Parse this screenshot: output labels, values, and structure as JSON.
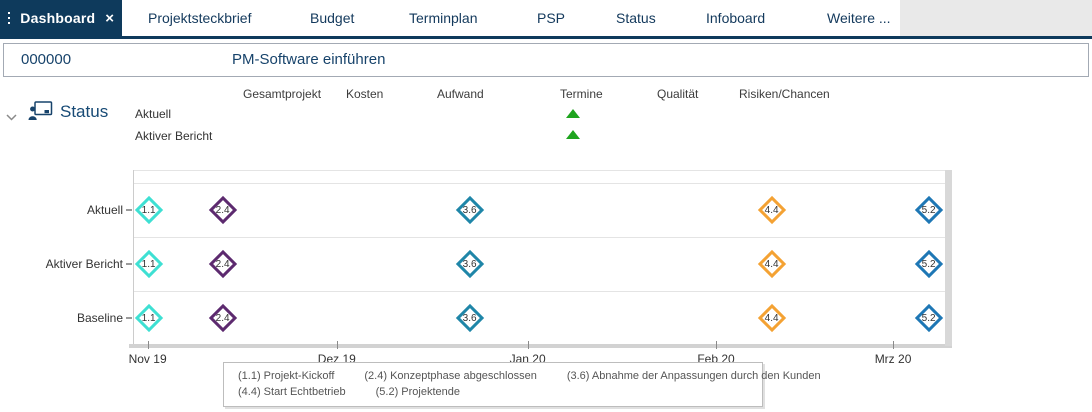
{
  "tabs": {
    "active": {
      "label": "Dashboard",
      "close_icon": "×"
    },
    "items": [
      {
        "label": "Projektsteckbrief"
      },
      {
        "label": "Budget"
      },
      {
        "label": "Terminplan"
      },
      {
        "label": "PSP"
      },
      {
        "label": "Status"
      },
      {
        "label": "Infoboard"
      },
      {
        "label": "Weitere ..."
      }
    ]
  },
  "header": {
    "project_number": "000000",
    "project_title": "PM-Software einführen"
  },
  "status_section": {
    "title": "Status",
    "columns": [
      "Gesamtprojekt",
      "Kosten",
      "Aufwand",
      "Termine",
      "Qualität",
      "Risiken/Chancen"
    ],
    "rows": [
      {
        "label": "Aktuell",
        "indicators": {
          "Termine": "trend-up"
        }
      },
      {
        "label": "Aktiver Bericht",
        "indicators": {
          "Termine": "trend-up"
        }
      }
    ],
    "trend_color": "#1ea41e"
  },
  "chart_data": {
    "type": "scatter",
    "subtype": "milestone-timeline",
    "rows": [
      "Aktuell",
      "Aktiver Bericht",
      "Baseline"
    ],
    "x_axis": {
      "ticks": [
        "Nov 19",
        "Dez 19",
        "Jan 20",
        "Feb 20",
        "Mrz 20"
      ],
      "tick_x_pct": [
        1.8,
        25.1,
        48.6,
        71.8,
        93.6
      ],
      "range": [
        "Nov 2019",
        "Mrz 2020"
      ]
    },
    "milestones": [
      {
        "id": "1.1",
        "label": "Projekt-Kickoff",
        "date_est": "01.11.2019",
        "x_pct": 2.0,
        "color": "#3ee0d3"
      },
      {
        "id": "2.4",
        "label": "Konzeptphase abgeschlossen",
        "date_est": "13.11.2019",
        "x_pct": 11.1,
        "color": "#5d2a6f"
      },
      {
        "id": "3.6",
        "label": "Abnahme der Anpassungen durch den Kunden",
        "date_est": "23.12.2019",
        "x_pct": 41.5,
        "color": "#1f86a8"
      },
      {
        "id": "4.4",
        "label": "Start Echtbetrieb",
        "date_est": "10.02.2020",
        "x_pct": 78.7,
        "color": "#f4a233"
      },
      {
        "id": "5.2",
        "label": "Projektende",
        "date_est": "08.03.2020",
        "x_pct": 98.0,
        "color": "#1e77b5"
      }
    ],
    "legend": {
      "lines": [
        [
          "(1.1) Projekt-Kickoff",
          "(2.4) Konzeptphase abgeschlossen",
          "(3.6) Abnahme der Anpassungen durch den Kunden"
        ],
        [
          "(4.4) Start Echtbetrieb",
          "(5.2) Projektende"
        ]
      ]
    }
  }
}
